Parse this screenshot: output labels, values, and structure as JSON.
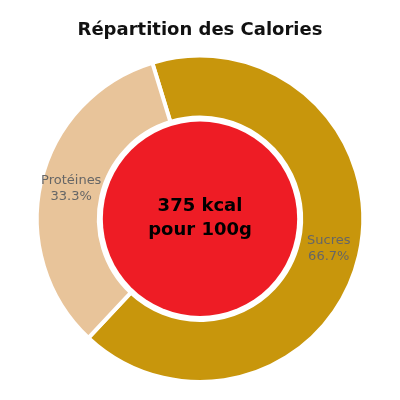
{
  "chart_data": {
    "type": "doughnut",
    "title": "Répartition des Calories",
    "categories": [
      "Sucres",
      "Protéines"
    ],
    "values": [
      66.7,
      33.3
    ],
    "value_labels": [
      "66.7%",
      "33.3%"
    ],
    "colors": [
      "#C8960C",
      "#E8C49A"
    ],
    "data_labels": true,
    "legend": false,
    "annotations": [
      {
        "text": [
          "375 kcal",
          "pour 100g"
        ],
        "background": "#EE1C25"
      }
    ]
  }
}
